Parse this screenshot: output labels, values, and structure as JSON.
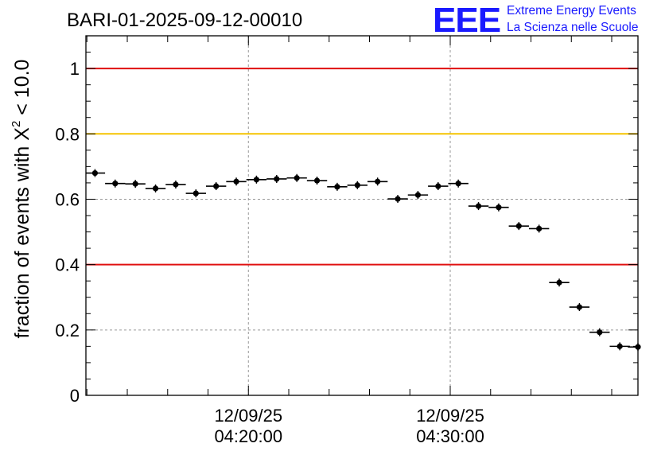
{
  "header": {
    "run_title": "BARI-01-2025-09-12-00010",
    "logo_text": "EEE",
    "org_line1": "Extreme Energy Events",
    "org_line2": "La Scienza nelle Scuole"
  },
  "colors": {
    "marker": "#000000",
    "red_line": "#e01010",
    "yellow_line": "#f5c400",
    "grid": "#999999",
    "logo_blue": "#1a1aff"
  },
  "chart_data": {
    "type": "scatter",
    "title": "BARI-01-2025-09-12-00010",
    "ylabel_prefix": "fraction of events with X",
    "ylabel_superscript": "2",
    "ylabel_suffix": " < 10.0",
    "ylim": [
      0,
      1.1
    ],
    "y_ticks": [
      {
        "value": 0,
        "label": "0"
      },
      {
        "value": 0.2,
        "label": "0.2"
      },
      {
        "value": 0.4,
        "label": "0.4"
      },
      {
        "value": 0.6,
        "label": "0.6"
      },
      {
        "value": 0.8,
        "label": "0.8"
      },
      {
        "value": 1.0,
        "label": "1"
      }
    ],
    "xlim_minutes": [
      -8.05,
      19.3
    ],
    "x_ticks": [
      {
        "minute": 0,
        "date": "12/09/25",
        "time": "04:20:00"
      },
      {
        "minute": 10,
        "date": "12/09/25",
        "time": "04:30:00"
      }
    ],
    "grid": true,
    "reference_lines": [
      {
        "y": 1.0,
        "color": "red"
      },
      {
        "y": 0.8,
        "color": "yellow"
      },
      {
        "y": 0.4,
        "color": "red"
      }
    ],
    "bin_width_minutes": 1,
    "points": [
      {
        "t": -7.6,
        "y": 0.68
      },
      {
        "t": -6.6,
        "y": 0.648
      },
      {
        "t": -5.6,
        "y": 0.647
      },
      {
        "t": -4.6,
        "y": 0.633
      },
      {
        "t": -3.6,
        "y": 0.645
      },
      {
        "t": -2.6,
        "y": 0.618
      },
      {
        "t": -1.6,
        "y": 0.64
      },
      {
        "t": -0.6,
        "y": 0.654
      },
      {
        "t": 0.4,
        "y": 0.66
      },
      {
        "t": 1.4,
        "y": 0.662
      },
      {
        "t": 2.4,
        "y": 0.665
      },
      {
        "t": 3.4,
        "y": 0.657
      },
      {
        "t": 4.4,
        "y": 0.638
      },
      {
        "t": 5.4,
        "y": 0.643
      },
      {
        "t": 6.4,
        "y": 0.654
      },
      {
        "t": 7.4,
        "y": 0.601
      },
      {
        "t": 8.4,
        "y": 0.613
      },
      {
        "t": 9.4,
        "y": 0.64
      },
      {
        "t": 10.4,
        "y": 0.648
      },
      {
        "t": 11.4,
        "y": 0.579
      },
      {
        "t": 12.4,
        "y": 0.575
      },
      {
        "t": 13.4,
        "y": 0.518
      },
      {
        "t": 14.4,
        "y": 0.51
      },
      {
        "t": 15.4,
        "y": 0.345
      },
      {
        "t": 16.4,
        "y": 0.27
      },
      {
        "t": 17.4,
        "y": 0.193
      },
      {
        "t": 18.4,
        "y": 0.15
      },
      {
        "t": 19.3,
        "y": 0.148
      }
    ]
  }
}
